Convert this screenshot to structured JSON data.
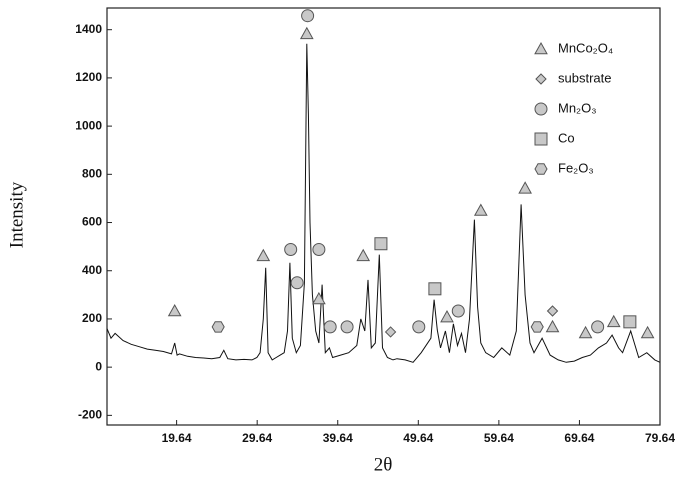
{
  "chart_data": {
    "type": "line",
    "xlabel": "2θ",
    "ylabel": "Intensity",
    "x": [
      11,
      11.5,
      12,
      13,
      14,
      15,
      16,
      17,
      18,
      19,
      19.4,
      19.7,
      20,
      21,
      22,
      23,
      24,
      25,
      25.5,
      26,
      27,
      28,
      29,
      29.6,
      30,
      30.4,
      30.7,
      31,
      31.5,
      32,
      32.5,
      33,
      33.4,
      33.7,
      34,
      34.5,
      35,
      35.5,
      35.8,
      36,
      36.2,
      36.5,
      36.9,
      37.3,
      37.7,
      38.1,
      38.6,
      39,
      40,
      41,
      42,
      42.5,
      43,
      43.4,
      43.8,
      44.3,
      44.8,
      45.2,
      45.8,
      46.5,
      47,
      48,
      49,
      50,
      51.2,
      51.6,
      52,
      52.4,
      53,
      53.5,
      54,
      54.5,
      55,
      55.5,
      56,
      56.6,
      57,
      57.4,
      58,
      59,
      60,
      61,
      61.8,
      62.4,
      62.9,
      63.5,
      64,
      65,
      66,
      67,
      68,
      69,
      70,
      71,
      72,
      73,
      73.7,
      74.5,
      75,
      76,
      77,
      78,
      79,
      79.64
    ],
    "values": [
      160,
      120,
      140,
      110,
      95,
      85,
      75,
      70,
      65,
      55,
      100,
      50,
      55,
      45,
      40,
      38,
      35,
      40,
      70,
      35,
      30,
      32,
      30,
      40,
      60,
      200,
      412,
      60,
      30,
      40,
      50,
      60,
      150,
      433,
      120,
      60,
      90,
      350,
      1342,
      1050,
      600,
      300,
      150,
      100,
      342,
      60,
      80,
      40,
      50,
      60,
      90,
      200,
      150,
      362,
      80,
      100,
      467,
      80,
      40,
      30,
      35,
      30,
      20,
      60,
      120,
      280,
      154,
      80,
      150,
      60,
      180,
      90,
      140,
      60,
      200,
      612,
      250,
      100,
      60,
      40,
      80,
      50,
      150,
      675,
      300,
      100,
      60,
      120,
      50,
      30,
      20,
      25,
      40,
      50,
      80,
      100,
      133,
      80,
      60,
      150,
      40,
      60,
      30,
      20
    ],
    "color": "#111111",
    "xlim": [
      11,
      79.64
    ],
    "xticks": [
      19.64,
      29.64,
      39.64,
      49.64,
      59.64,
      69.64,
      79.64
    ],
    "ylim": [
      -240,
      1490
    ],
    "yticks": [
      -200,
      0,
      200,
      400,
      600,
      800,
      1000,
      1200,
      1400
    ],
    "phases": [
      {
        "name": "MnCo₂O₄",
        "symbol": "triangle"
      },
      {
        "name": "substrate",
        "symbol": "diamond"
      },
      {
        "name": "Mn₂O₃",
        "symbol": "circle"
      },
      {
        "name": "Co",
        "symbol": "square"
      },
      {
        "name": "Fe₂O₃",
        "symbol": "hexagon"
      }
    ],
    "marker_color": "#c8c8c8",
    "markers": [
      {
        "phase": 0,
        "x": 19.4,
        "y": 233
      },
      {
        "phase": 4,
        "x": 24.8,
        "y": 167
      },
      {
        "phase": 0,
        "x": 30.4,
        "y": 462
      },
      {
        "phase": 2,
        "x": 33.8,
        "y": 488
      },
      {
        "phase": 2,
        "x": 34.6,
        "y": 350
      },
      {
        "phase": 0,
        "x": 35.8,
        "y": 1383
      },
      {
        "phase": 2,
        "x": 35.9,
        "y": 1458
      },
      {
        "phase": 2,
        "x": 37.3,
        "y": 488
      },
      {
        "phase": 0,
        "x": 37.3,
        "y": 283
      },
      {
        "phase": 2,
        "x": 38.7,
        "y": 167
      },
      {
        "phase": 2,
        "x": 40.8,
        "y": 167
      },
      {
        "phase": 0,
        "x": 42.8,
        "y": 462
      },
      {
        "phase": 3,
        "x": 45.0,
        "y": 512
      },
      {
        "phase": 1,
        "x": 46.2,
        "y": 146
      },
      {
        "phase": 2,
        "x": 49.7,
        "y": 167
      },
      {
        "phase": 3,
        "x": 51.7,
        "y": 325
      },
      {
        "phase": 0,
        "x": 53.2,
        "y": 208
      },
      {
        "phase": 2,
        "x": 54.6,
        "y": 233
      },
      {
        "phase": 0,
        "x": 57.4,
        "y": 650
      },
      {
        "phase": 0,
        "x": 62.9,
        "y": 742
      },
      {
        "phase": 4,
        "x": 64.4,
        "y": 167
      },
      {
        "phase": 0,
        "x": 66.3,
        "y": 167
      },
      {
        "phase": 1,
        "x": 66.3,
        "y": 233
      },
      {
        "phase": 0,
        "x": 70.4,
        "y": 142
      },
      {
        "phase": 2,
        "x": 71.9,
        "y": 167
      },
      {
        "phase": 0,
        "x": 73.9,
        "y": 188
      },
      {
        "phase": 3,
        "x": 75.9,
        "y": 188
      },
      {
        "phase": 0,
        "x": 78.1,
        "y": 142
      }
    ]
  }
}
